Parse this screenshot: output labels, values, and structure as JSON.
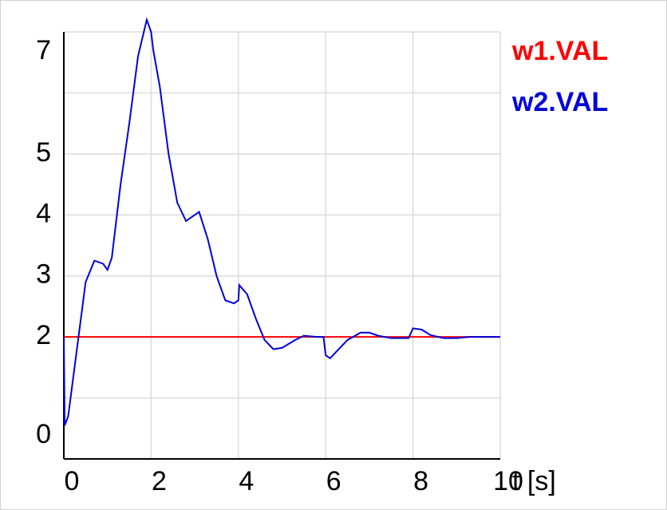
{
  "chart_data": {
    "type": "line",
    "xlabel": "t [s]",
    "xlim": [
      0,
      10
    ],
    "xticks": [
      0,
      2,
      4,
      6,
      8,
      10
    ],
    "ylim": [
      0,
      7
    ],
    "yticks": [
      0,
      2,
      3,
      4,
      5,
      7
    ],
    "ygrid": [
      0,
      1,
      2,
      3,
      4,
      5,
      6,
      7
    ],
    "grid": true,
    "series": [
      {
        "name": "w1.VAL",
        "color": "#ff0000",
        "x": [
          0,
          10
        ],
        "values": [
          2,
          2
        ]
      },
      {
        "name": "w2.VAL",
        "color": "#0000dd",
        "x": [
          0,
          0.02,
          0.1,
          0.3,
          0.5,
          0.7,
          0.9,
          1.0,
          1.1,
          1.3,
          1.5,
          1.7,
          1.9,
          2.0,
          2.05,
          2.2,
          2.4,
          2.6,
          2.8,
          3.0,
          3.1,
          3.3,
          3.5,
          3.7,
          3.9,
          4.0,
          4.02,
          4.2,
          4.4,
          4.6,
          4.8,
          5.0,
          5.3,
          5.5,
          5.8,
          5.95,
          6.0,
          6.1,
          6.3,
          6.5,
          6.8,
          7.0,
          7.2,
          7.5,
          7.9,
          8.0,
          8.2,
          8.4,
          8.7,
          9.0,
          9.3,
          10
        ],
        "values": [
          2,
          0.55,
          0.7,
          1.8,
          2.9,
          3.25,
          3.2,
          3.1,
          3.3,
          4.5,
          5.5,
          6.6,
          7.2,
          7.0,
          6.7,
          6.1,
          5.0,
          4.2,
          3.9,
          4.0,
          4.05,
          3.6,
          3.0,
          2.6,
          2.55,
          2.6,
          2.85,
          2.7,
          2.3,
          1.95,
          1.8,
          1.82,
          1.95,
          2.02,
          2.0,
          2.0,
          1.7,
          1.65,
          1.8,
          1.95,
          2.07,
          2.07,
          2.02,
          1.98,
          1.98,
          2.14,
          2.12,
          2.03,
          1.98,
          1.98,
          2.0,
          2.0
        ]
      }
    ]
  }
}
